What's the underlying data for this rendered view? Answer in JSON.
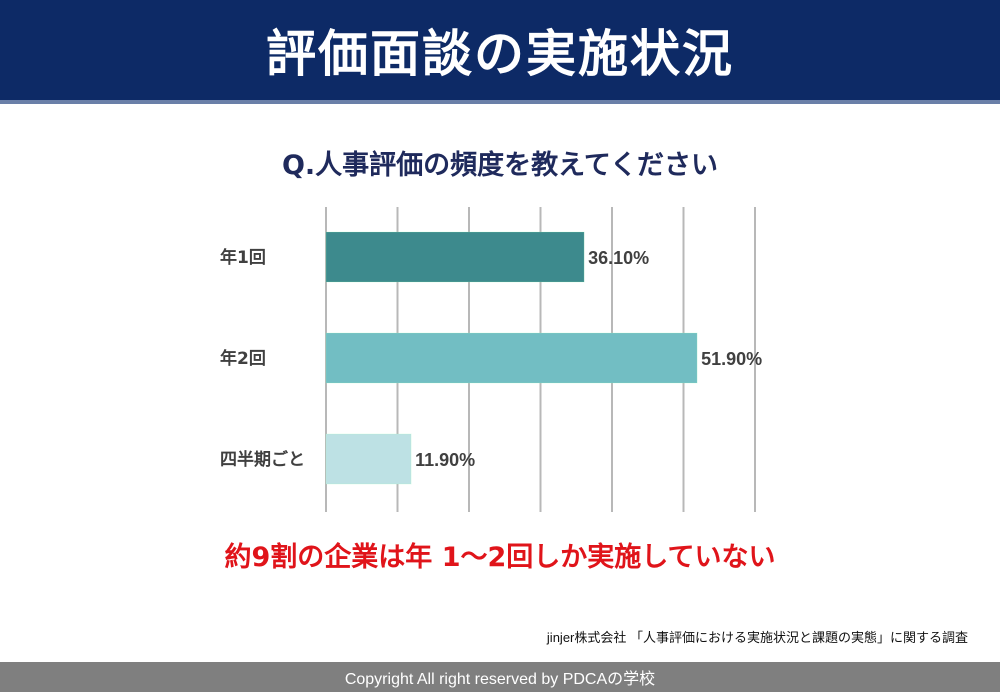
{
  "header": {
    "title": "評価面談の実施状況"
  },
  "question": "Q.人事評価の頻度を教えてください",
  "chart_data": {
    "type": "bar",
    "orientation": "horizontal",
    "categories": [
      "年1回",
      "年2回",
      "四半期ごと"
    ],
    "values": [
      36.1,
      51.9,
      11.9
    ],
    "labels": [
      "36.10%",
      "51.90%",
      "11.90%"
    ],
    "colors": [
      "#3d8a8d",
      "#72bec3",
      "#bde1e4"
    ],
    "xlim": [
      0,
      60
    ],
    "grid": true,
    "unit": "%"
  },
  "conclusion": "約9割の企業は年 1〜2回しか実施していない",
  "source": "jinjer株式会社 「人事評価における実施状況と課題の実態」に関する調査",
  "footer": "Copyright All right reserved by PDCAの学校"
}
